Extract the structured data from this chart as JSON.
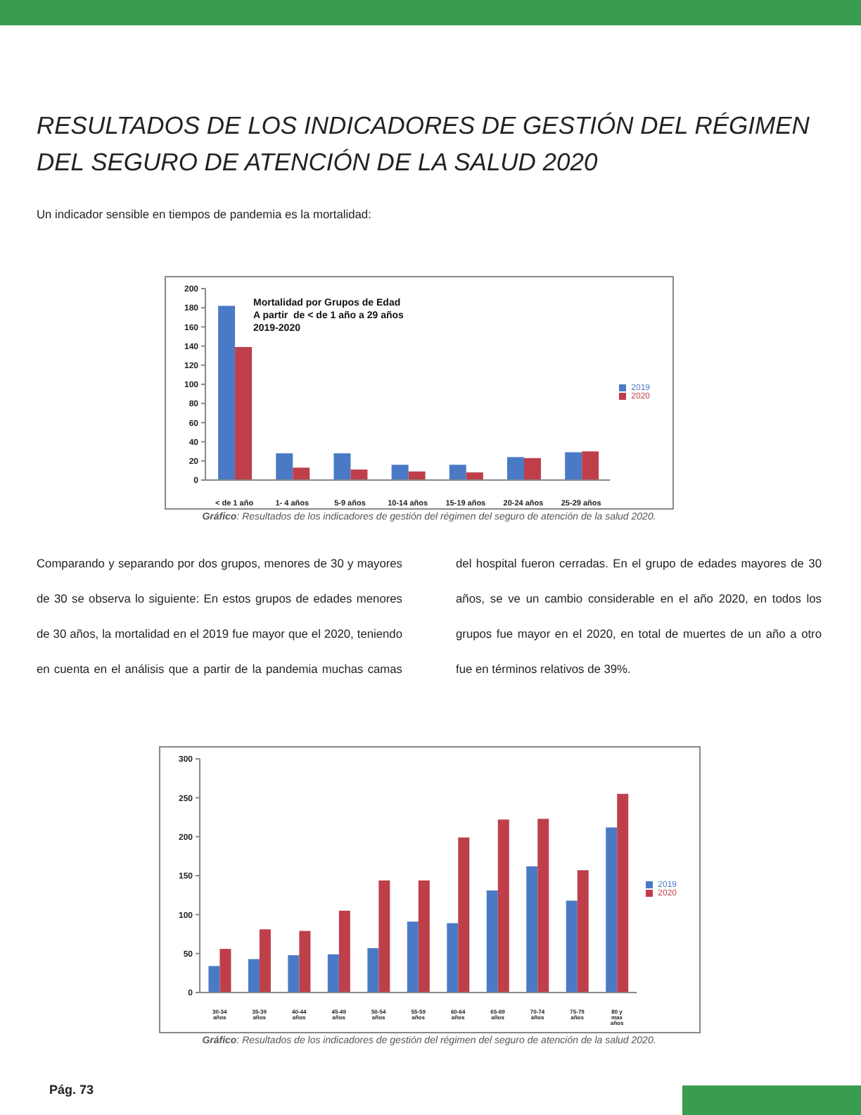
{
  "chart_data": [
    {
      "type": "bar",
      "title": "Mortalidad por Grupos de Edad\nA partir  de < de 1 año a 29 años\n2019-2020",
      "annotations": [
        "RESULTADOS DE LOS INDICADORES DE GESTIÓN DEL RÉGIMEN DEL SEGURO DE ATENCIÓN DE LA SALUD 2020",
        "Un indicador sensible en tiempos de pandemia es la mortalidad:",
        "Gráfico: Resultados de los indicadores de gestión del régimen del seguro de atención de la salud 2020."
      ],
      "categories": [
        "<  de 1 año",
        "1- 4 años",
        "5-9 años",
        "10-14 años",
        "15-19 años",
        "20-24 años",
        "25-29 años"
      ],
      "series": [
        {
          "name": "2019",
          "color": "#4a7ac6",
          "values": [
            182,
            28,
            28,
            16,
            16,
            24,
            29
          ]
        },
        {
          "name": "2020",
          "color": "#be3f4a",
          "values": [
            139,
            13,
            11,
            9,
            8,
            23,
            30
          ]
        }
      ],
      "ylim": [
        0,
        200
      ],
      "yticks": [
        0,
        20,
        40,
        60,
        80,
        100,
        120,
        140,
        160,
        180,
        200
      ],
      "legend": "right"
    },
    {
      "type": "bar",
      "annotations": [
        "Comparando y separando por dos grupos, menores de 30 y mayores de 30 se observa lo siguiente: En estos grupos de edades menores de 30 años, la mortalidad en el 2019 fue mayor que el 2020, teniendo en cuenta en el análisis que a partir de la pandemia muchas camas del hospital fueron cerradas. En el grupo de edades mayores de 30 años, se ve un cambio considerable en el año 2020, en todos los grupos fue mayor en el 2020, en total de muertes de un año a otro fue en términos relativos de 39%.",
        "Gráfico: Resultados de los indicadores de gestión del régimen del seguro de atención de la salud 2020.",
        "Pág. 73"
      ],
      "categories": [
        "30-34 años",
        "35-39 años",
        "40-44 años",
        "45-49 años",
        "50-54 años",
        "55-59 años",
        "60-64 años",
        "65-69 años",
        "70-74 años",
        "75-79 años",
        "80 y mas años"
      ],
      "series": [
        {
          "name": "2019",
          "color": "#4a7ac6",
          "values": [
            34,
            43,
            48,
            49,
            57,
            91,
            89,
            131,
            162,
            118,
            212
          ]
        },
        {
          "name": "2020",
          "color": "#be3f4a",
          "values": [
            56,
            81,
            79,
            105,
            144,
            144,
            199,
            222,
            223,
            157,
            255
          ]
        }
      ],
      "ylim": [
        0,
        300
      ],
      "yticks": [
        0,
        50,
        100,
        150,
        200,
        250,
        300
      ],
      "legend": "right"
    }
  ]
}
